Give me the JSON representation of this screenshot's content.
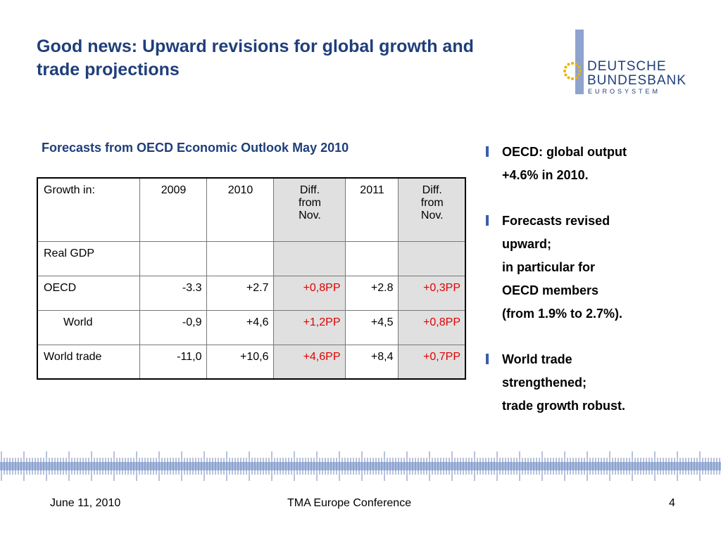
{
  "slide": {
    "title_line1": "Good news: Upward revisions for global growth and",
    "title_line2": "trade projections"
  },
  "logo": {
    "line1": "DEUTSCHE",
    "line2": "BUNDESBANK",
    "line3": "EUROSYSTEM",
    "icon": "eurostars-icon",
    "bar_color": "#8fa3cf",
    "star_color": "#e8b400"
  },
  "table": {
    "caption": "Forecasts from OECD Economic Outlook May 2010",
    "headers": [
      "Growth in:",
      "2009",
      "2010",
      "Diff.\nfrom\nNov.",
      "2011",
      "Diff.\nfrom\nNov."
    ],
    "section_label": "Real GDP",
    "rows": [
      {
        "label": "OECD",
        "y2009": "-3.3",
        "y2010": "+2.7",
        "diff2010": "+0,8PP",
        "y2011": "+2.8",
        "diff2011": "+0,3PP"
      },
      {
        "label": "World",
        "y2009": "-0,9",
        "y2010": "+4,6",
        "diff2010": "+1,2PP",
        "y2011": "+4,5",
        "diff2011": "+0,8PP"
      },
      {
        "label": "World trade",
        "y2009": "-11,0",
        "y2010": "+10,6",
        "diff2010": "+4,6PP",
        "y2011": "+8,4",
        "diff2011": "+0,7PP"
      }
    ],
    "diff_color": "#e00000",
    "diff_background": "#e0e0e0"
  },
  "bullets": [
    {
      "lines": [
        "OECD: global output",
        "+4.6% in 2010."
      ]
    },
    {
      "lines": [
        "Forecasts revised",
        "upward;",
        "in particular for",
        "OECD members",
        "(from 1.9% to 2.7%)."
      ]
    },
    {
      "lines": [
        "World trade",
        "strengthened;",
        "trade growth robust."
      ]
    }
  ],
  "footer": {
    "date": "June 11, 2010",
    "conference": "TMA Europe Conference",
    "page": "4"
  },
  "colors": {
    "title": "#1f3f7a",
    "bullet_mark": "#3b5da8",
    "ruler_band": "#a9bde0"
  }
}
